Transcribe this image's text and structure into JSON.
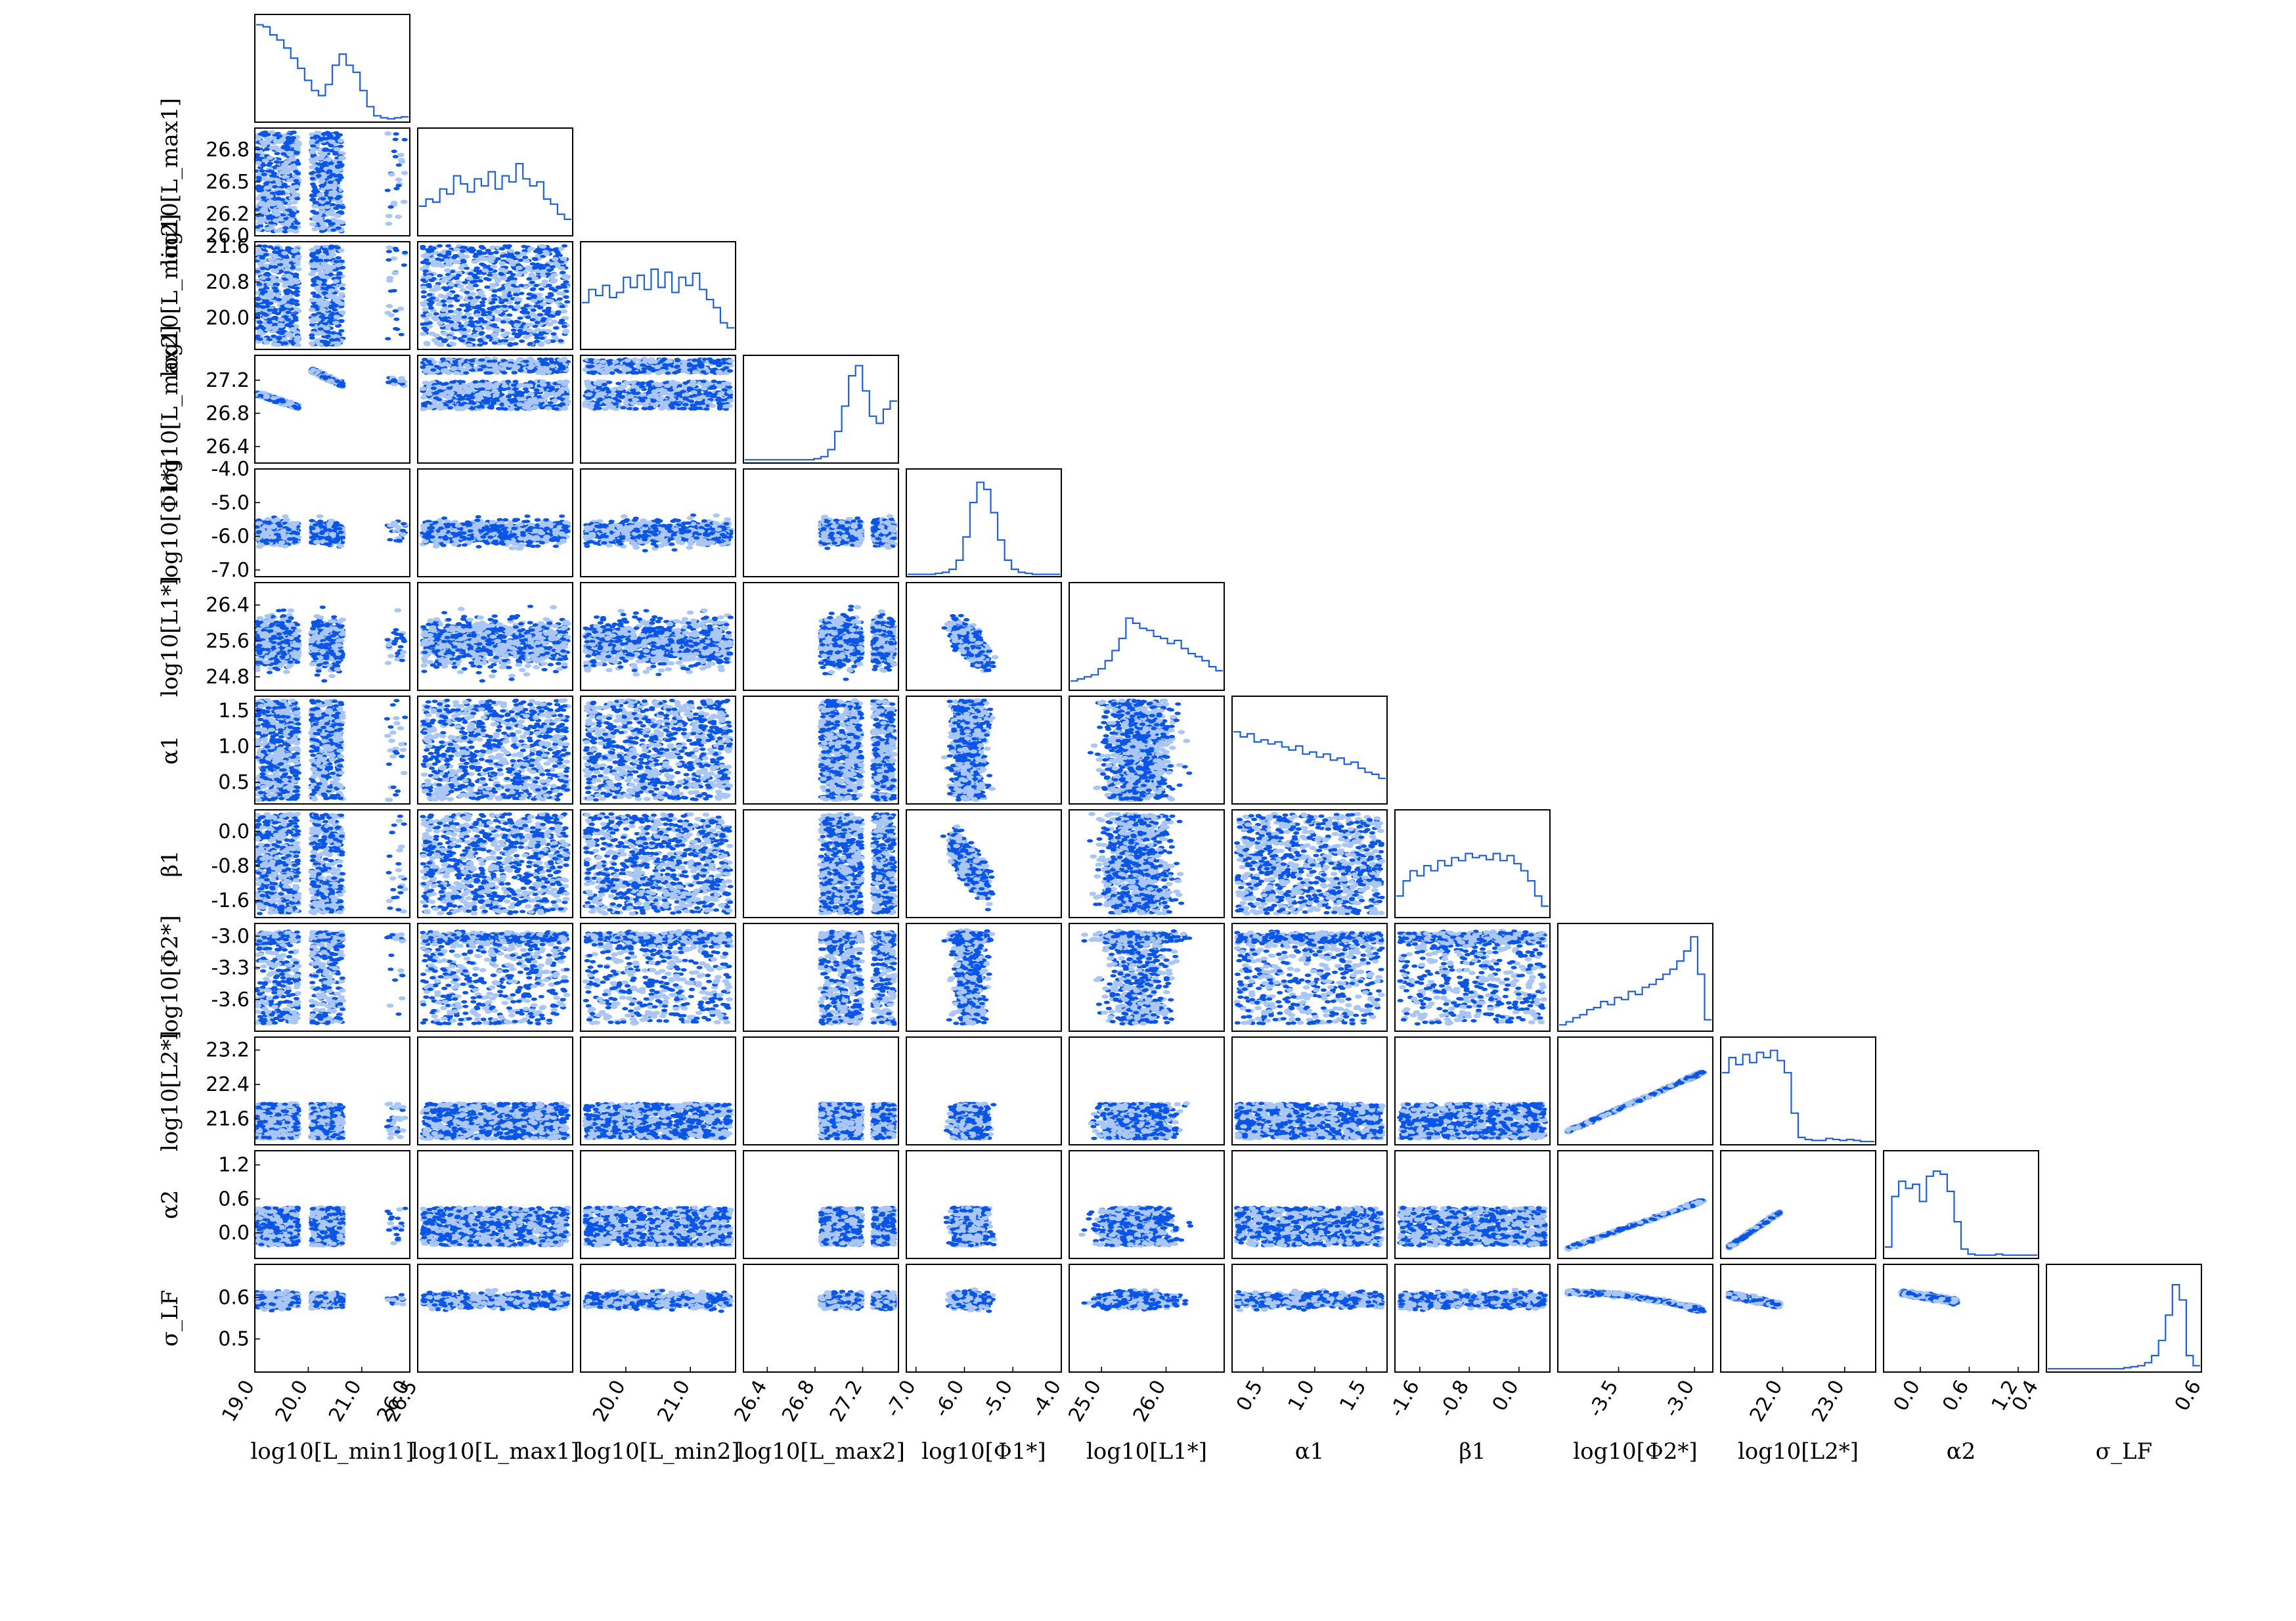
{
  "chart_data": {
    "type": "corner",
    "description_level": "posterior samples triangle plot",
    "colors": {
      "line": "#1f5fd6",
      "scatter_dark": "#0a55e6",
      "scatter_light": "#a9c6f5",
      "frame": "#000000"
    },
    "parameters": [
      {
        "key": "lmin1",
        "label": "log10[L_min1]",
        "range": [
          19.0,
          21.9
        ],
        "ticks": [
          {
            "v": 19.0,
            "t": "19.0"
          },
          {
            "v": 20.0,
            "t": "20.0"
          },
          {
            "v": 21.0,
            "t": "21.0"
          }
        ],
        "samples": [
          {
            "kind": "band",
            "center": 19.6,
            "width": 0.45
          },
          {
            "kind": "band",
            "center": 20.3,
            "width": 0.25
          },
          {
            "kind": "tail",
            "center": 21.75,
            "width": 0.1
          }
        ],
        "histogram": [
          0.95,
          0.93,
          0.85,
          0.8,
          0.72,
          0.62,
          0.52,
          0.4,
          0.3,
          0.25,
          0.36,
          0.55,
          0.66,
          0.55,
          0.48,
          0.3,
          0.14,
          0.05,
          0.03,
          0.02,
          0.03,
          0.04
        ]
      },
      {
        "key": "lmax1",
        "label": "log10[L_max1]",
        "range": [
          26.0,
          27.0
        ],
        "ticks": [
          {
            "v": 26.0,
            "t": "26.0"
          },
          {
            "v": 26.5,
            "t": "26.5"
          }
        ],
        "ticks_y": [
          {
            "v": 26.2,
            "t": "26.2"
          },
          {
            "v": 26.5,
            "t": "26.5"
          },
          {
            "v": 26.8,
            "t": "26.8"
          }
        ],
        "histogram": [
          0.28,
          0.35,
          0.32,
          0.45,
          0.4,
          0.58,
          0.5,
          0.42,
          0.55,
          0.48,
          0.62,
          0.45,
          0.58,
          0.52,
          0.7,
          0.55,
          0.48,
          0.52,
          0.35,
          0.3,
          0.2,
          0.15
        ]
      },
      {
        "key": "lmin2",
        "label": "log10[L_min2]",
        "range": [
          19.3,
          21.7
        ],
        "ticks": [
          {
            "v": 20.0,
            "t": "20.0"
          },
          {
            "v": 21.0,
            "t": "21.0"
          }
        ],
        "ticks_y": [
          {
            "v": 20.0,
            "t": "20.0"
          },
          {
            "v": 20.8,
            "t": "20.8"
          },
          {
            "v": 21.6,
            "t": "21.6"
          }
        ],
        "histogram": [
          0.45,
          0.58,
          0.52,
          0.62,
          0.5,
          0.55,
          0.7,
          0.6,
          0.72,
          0.58,
          0.78,
          0.6,
          0.75,
          0.55,
          0.7,
          0.62,
          0.74,
          0.58,
          0.48,
          0.4,
          0.25,
          0.2
        ]
      },
      {
        "key": "lmax2",
        "label": "log10[L_max2]",
        "range": [
          26.2,
          27.5
        ],
        "ticks": [
          {
            "v": 26.4,
            "t": "26.4"
          },
          {
            "v": 26.8,
            "t": "26.8"
          },
          {
            "v": 27.2,
            "t": "27.2"
          }
        ],
        "ticks_y": [
          {
            "v": 26.4,
            "t": "26.4"
          },
          {
            "v": 26.8,
            "t": "26.8"
          },
          {
            "v": 27.2,
            "t": "27.2"
          }
        ],
        "histogram": [
          0.02,
          0.02,
          0.02,
          0.02,
          0.02,
          0.02,
          0.02,
          0.02,
          0.02,
          0.02,
          0.03,
          0.05,
          0.12,
          0.3,
          0.55,
          0.85,
          0.95,
          0.7,
          0.45,
          0.38,
          0.52,
          0.6
        ]
      },
      {
        "key": "phi1",
        "label": "log10[Φ1*]",
        "range": [
          -7.2,
          -4.0
        ],
        "ticks": [
          {
            "v": -7.0,
            "t": "-7.0"
          },
          {
            "v": -6.0,
            "t": "-6.0"
          },
          {
            "v": -5.0,
            "t": "-5.0"
          },
          {
            "v": -4.0,
            "t": "-4.0"
          }
        ],
        "ticks_y": [
          {
            "v": -7.0,
            "t": "-7.0"
          },
          {
            "v": -6.0,
            "t": "-6.0"
          },
          {
            "v": -5.0,
            "t": "-5.0"
          },
          {
            "v": -4.0,
            "t": "-4.0"
          }
        ],
        "histogram": [
          0.01,
          0.01,
          0.01,
          0.01,
          0.02,
          0.03,
          0.06,
          0.15,
          0.38,
          0.72,
          0.92,
          0.85,
          0.62,
          0.35,
          0.15,
          0.06,
          0.03,
          0.02,
          0.01,
          0.01,
          0.01,
          0.01
        ]
      },
      {
        "key": "l1",
        "label": "log10[L1*]",
        "range": [
          24.5,
          26.9
        ],
        "ticks": [
          {
            "v": 25.0,
            "t": "25.0"
          },
          {
            "v": 26.0,
            "t": "26.0"
          }
        ],
        "ticks_y": [
          {
            "v": 24.8,
            "t": "24.8"
          },
          {
            "v": 25.6,
            "t": "25.6"
          },
          {
            "v": 26.4,
            "t": "26.4"
          }
        ],
        "histogram": [
          0.08,
          0.1,
          0.12,
          0.14,
          0.2,
          0.28,
          0.38,
          0.5,
          0.7,
          0.65,
          0.6,
          0.58,
          0.52,
          0.5,
          0.45,
          0.48,
          0.4,
          0.35,
          0.32,
          0.28,
          0.22,
          0.18
        ]
      },
      {
        "key": "alpha1",
        "label": "α1",
        "range": [
          0.2,
          1.7
        ],
        "ticks": [
          {
            "v": 0.5,
            "t": "0.5"
          },
          {
            "v": 1.0,
            "t": "1.0"
          },
          {
            "v": 1.5,
            "t": "1.5"
          }
        ],
        "ticks_y": [
          {
            "v": 0.5,
            "t": "0.5"
          },
          {
            "v": 1.0,
            "t": "1.0"
          },
          {
            "v": 1.5,
            "t": "1.5"
          }
        ],
        "histogram": [
          0.7,
          0.65,
          0.68,
          0.6,
          0.62,
          0.58,
          0.6,
          0.55,
          0.52,
          0.56,
          0.48,
          0.5,
          0.45,
          0.48,
          0.42,
          0.44,
          0.38,
          0.4,
          0.34,
          0.3,
          0.28,
          0.24
        ]
      },
      {
        "key": "beta1",
        "label": "β1",
        "range": [
          -2.0,
          0.5
        ],
        "ticks": [
          {
            "v": -1.6,
            "t": "-1.6"
          },
          {
            "v": -0.8,
            "t": "-0.8"
          },
          {
            "v": 0.0,
            "t": "0.0"
          }
        ],
        "ticks_y": [
          {
            "v": -1.6,
            "t": "-1.6"
          },
          {
            "v": -0.8,
            "t": "-0.8"
          },
          {
            "v": 0.0,
            "t": "0.0"
          }
        ],
        "histogram": [
          0.2,
          0.35,
          0.45,
          0.4,
          0.5,
          0.45,
          0.55,
          0.5,
          0.58,
          0.55,
          0.62,
          0.58,
          0.6,
          0.56,
          0.62,
          0.55,
          0.6,
          0.52,
          0.45,
          0.35,
          0.2,
          0.1
        ]
      },
      {
        "key": "phi2",
        "label": "log10[Φ2*]",
        "range": [
          -3.9,
          -2.88
        ],
        "ticks": [
          {
            "v": -3.5,
            "t": "-3.5"
          },
          {
            "v": -3.0,
            "t": "-3.0"
          }
        ],
        "ticks_y": [
          {
            "v": -3.6,
            "t": "-3.6"
          },
          {
            "v": -3.3,
            "t": "-3.3"
          },
          {
            "v": -3.0,
            "t": "-3.0"
          }
        ],
        "histogram": [
          0.05,
          0.08,
          0.12,
          0.15,
          0.2,
          0.22,
          0.28,
          0.25,
          0.32,
          0.3,
          0.38,
          0.35,
          0.42,
          0.45,
          0.5,
          0.55,
          0.6,
          0.68,
          0.78,
          0.92,
          0.55,
          0.1
        ]
      },
      {
        "key": "l2",
        "label": "log10[L2*]",
        "range": [
          21.0,
          23.5
        ],
        "ticks": [
          {
            "v": 22.0,
            "t": "22.0"
          },
          {
            "v": 23.0,
            "t": "23.0"
          }
        ],
        "ticks_y": [
          {
            "v": 21.6,
            "t": "21.6"
          },
          {
            "v": 22.4,
            "t": "22.4"
          },
          {
            "v": 23.2,
            "t": "23.2"
          }
        ],
        "histogram": [
          0.7,
          0.85,
          0.78,
          0.88,
          0.8,
          0.9,
          0.85,
          0.92,
          0.82,
          0.7,
          0.3,
          0.06,
          0.04,
          0.03,
          0.03,
          0.05,
          0.04,
          0.03,
          0.04,
          0.03,
          0.02,
          0.02
        ]
      },
      {
        "key": "alpha2",
        "label": "α2",
        "range": [
          -0.45,
          1.45
        ],
        "ticks": [
          {
            "v": 0.0,
            "t": "0.0"
          },
          {
            "v": 0.6,
            "t": "0.6"
          },
          {
            "v": 1.2,
            "t": "1.2"
          }
        ],
        "ticks_y": [
          {
            "v": 0.0,
            "t": "0.0"
          },
          {
            "v": 0.6,
            "t": "0.6"
          },
          {
            "v": 1.2,
            "t": "1.2"
          }
        ],
        "histogram": [
          0.1,
          0.6,
          0.75,
          0.68,
          0.72,
          0.55,
          0.8,
          0.85,
          0.82,
          0.65,
          0.35,
          0.08,
          0.03,
          0.02,
          0.02,
          0.02,
          0.03,
          0.02,
          0.02,
          0.02,
          0.02,
          0.02
        ]
      },
      {
        "key": "sigma",
        "label": "σ_LF",
        "range": [
          0.42,
          0.68
        ],
        "ticks": [
          {
            "v": 0.4,
            "t": "0.4"
          },
          {
            "v": 0.6,
            "t": "0.6"
          }
        ],
        "ticks_y": [
          {
            "v": 0.5,
            "t": "0.5"
          },
          {
            "v": 0.6,
            "t": "0.6"
          }
        ],
        "histogram": [
          0.02,
          0.02,
          0.02,
          0.02,
          0.02,
          0.02,
          0.02,
          0.02,
          0.02,
          0.02,
          0.02,
          0.03,
          0.04,
          0.05,
          0.08,
          0.15,
          0.3,
          0.55,
          0.85,
          0.7,
          0.15,
          0.05
        ]
      }
    ],
    "tick_labels_x": {
      "lmin1": [
        "19.0",
        "20.0",
        "21.0",
        "26.0"
      ],
      "lmax1": [
        "26.5"
      ],
      "lmin2": [
        "20.0",
        "21.0"
      ],
      "lmax2": [
        "26.4",
        "26.8",
        "27.2"
      ],
      "phi1": [
        "-7.0",
        "-6.0",
        "-5.0",
        "-4.0"
      ],
      "l1": [
        "25.0",
        "26.0"
      ],
      "alpha1": [
        "0.5",
        "1.0",
        "1.5"
      ],
      "beta1": [
        "-1.6",
        "-0.8",
        "0.0"
      ],
      "phi2": [
        "-3.5",
        "-3.0"
      ],
      "l2": [
        "22.0",
        "23.0"
      ],
      "alpha2": [
        "0.0",
        "0.6",
        "1.2",
        "0.4"
      ],
      "sigma": [
        "0.6"
      ]
    },
    "tick_labels_y": {
      "lmax1": [
        "26.8",
        "26.5",
        "26.2",
        "26.0"
      ],
      "lmin2": [
        "21.6",
        "20.8",
        "20.0"
      ],
      "lmax2": [
        "27.2",
        "26.8",
        "26.4"
      ],
      "phi1": [
        "-4.0",
        "-5.0",
        "-6.0",
        "-7.0"
      ],
      "l1": [
        "26.4",
        "25.6",
        "24.8"
      ],
      "alpha1": [
        "1.5",
        "1.0",
        "0.5"
      ],
      "beta1": [
        "0.0",
        "-0.8",
        "-1.6"
      ],
      "phi2": [
        "-3.0",
        "-3.3",
        "-3.6"
      ],
      "l2": [
        "23.2",
        "22.4",
        "21.6"
      ],
      "alpha2": [
        "1.2",
        "0.6",
        "0.0"
      ],
      "sigma": [
        "0.6",
        "0.5"
      ]
    }
  }
}
